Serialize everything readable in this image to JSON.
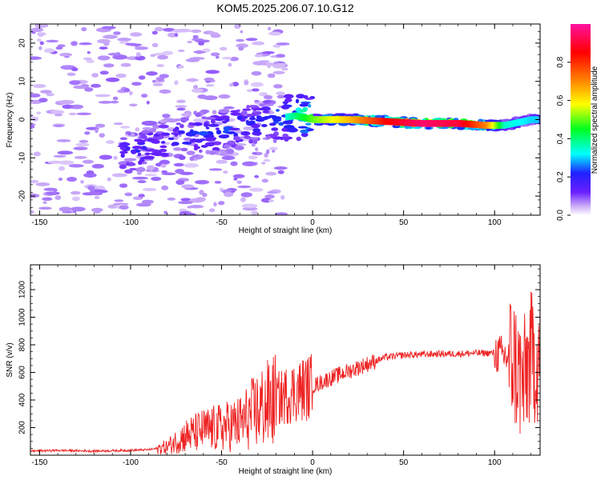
{
  "title": "KOM5.2025.206.07.10.G12",
  "chart_data": [
    {
      "type": "heatmap",
      "xlabel": "Height of straight line (km)",
      "ylabel": "Frequency (Hz)",
      "xlim": [
        -155,
        125
      ],
      "ylim": [
        -25,
        25
      ],
      "xticks": [
        -150,
        -100,
        -50,
        0,
        50,
        100
      ],
      "yticks": [
        -20,
        -10,
        0,
        10,
        20
      ],
      "colorbar": {
        "label": "Normalized spectral amplitude",
        "range": [
          0.0,
          1.0
        ],
        "ticks": [
          0.0,
          0.2,
          0.4,
          0.6,
          0.8
        ],
        "tick_labels": [
          "0.0",
          "0.2",
          "0.4",
          "0.6",
          "0.8"
        ],
        "colors": [
          "#ffffff",
          "#c8a8f8",
          "#5a14ff",
          "#2020ff",
          "#00ffff",
          "#00ff20",
          "#ffff00",
          "#ff8800",
          "#ff0000",
          "#ff10a0"
        ]
      },
      "grid": false,
      "ridge": {
        "description_values": [
          {
            "x": -100,
            "y": -9,
            "amp": 0.2
          },
          {
            "x": -75,
            "y": -5,
            "amp": 0.22
          },
          {
            "x": -50,
            "y": -3,
            "amp": 0.25
          },
          {
            "x": -25,
            "y": 0,
            "amp": 0.22
          },
          {
            "x": -10,
            "y": 1,
            "amp": 0.4
          },
          {
            "x": 0,
            "y": 0,
            "amp": 0.5
          },
          {
            "x": 20,
            "y": 0,
            "amp": 0.65
          },
          {
            "x": 40,
            "y": -0.5,
            "amp": 0.85
          },
          {
            "x": 60,
            "y": -1,
            "amp": 0.95
          },
          {
            "x": 80,
            "y": -1,
            "amp": 0.9
          },
          {
            "x": 95,
            "y": -1.5,
            "amp": 0.7
          },
          {
            "x": 105,
            "y": -1.5,
            "amp": 0.35
          },
          {
            "x": 120,
            "y": 0,
            "amp": 0.3
          }
        ]
      }
    },
    {
      "type": "line",
      "xlabel": "Height of straight line (km)",
      "ylabel": "SNR (v/v)",
      "xlim": [
        -155,
        125
      ],
      "ylim": [
        0,
        1380
      ],
      "xticks": [
        -150,
        -100,
        -50,
        0,
        50,
        100
      ],
      "yticks": [
        200,
        400,
        600,
        800,
        1000,
        1200
      ],
      "grid": false,
      "series": [
        {
          "color": "#ee2222",
          "x": [
            -155,
            -140,
            -120,
            -100,
            -90,
            -80,
            -70,
            -60,
            -50,
            -40,
            -30,
            -20,
            -10,
            0,
            10,
            20,
            30,
            40,
            50,
            60,
            70,
            80,
            90,
            100,
            105,
            110,
            113,
            116,
            118,
            120,
            125
          ],
          "y": [
            30,
            35,
            30,
            35,
            40,
            60,
            140,
            180,
            200,
            230,
            330,
            400,
            460,
            500,
            560,
            610,
            660,
            710,
            725,
            730,
            735,
            735,
            740,
            740,
            720,
            700,
            600,
            500,
            650,
            700,
            720
          ]
        }
      ]
    }
  ]
}
